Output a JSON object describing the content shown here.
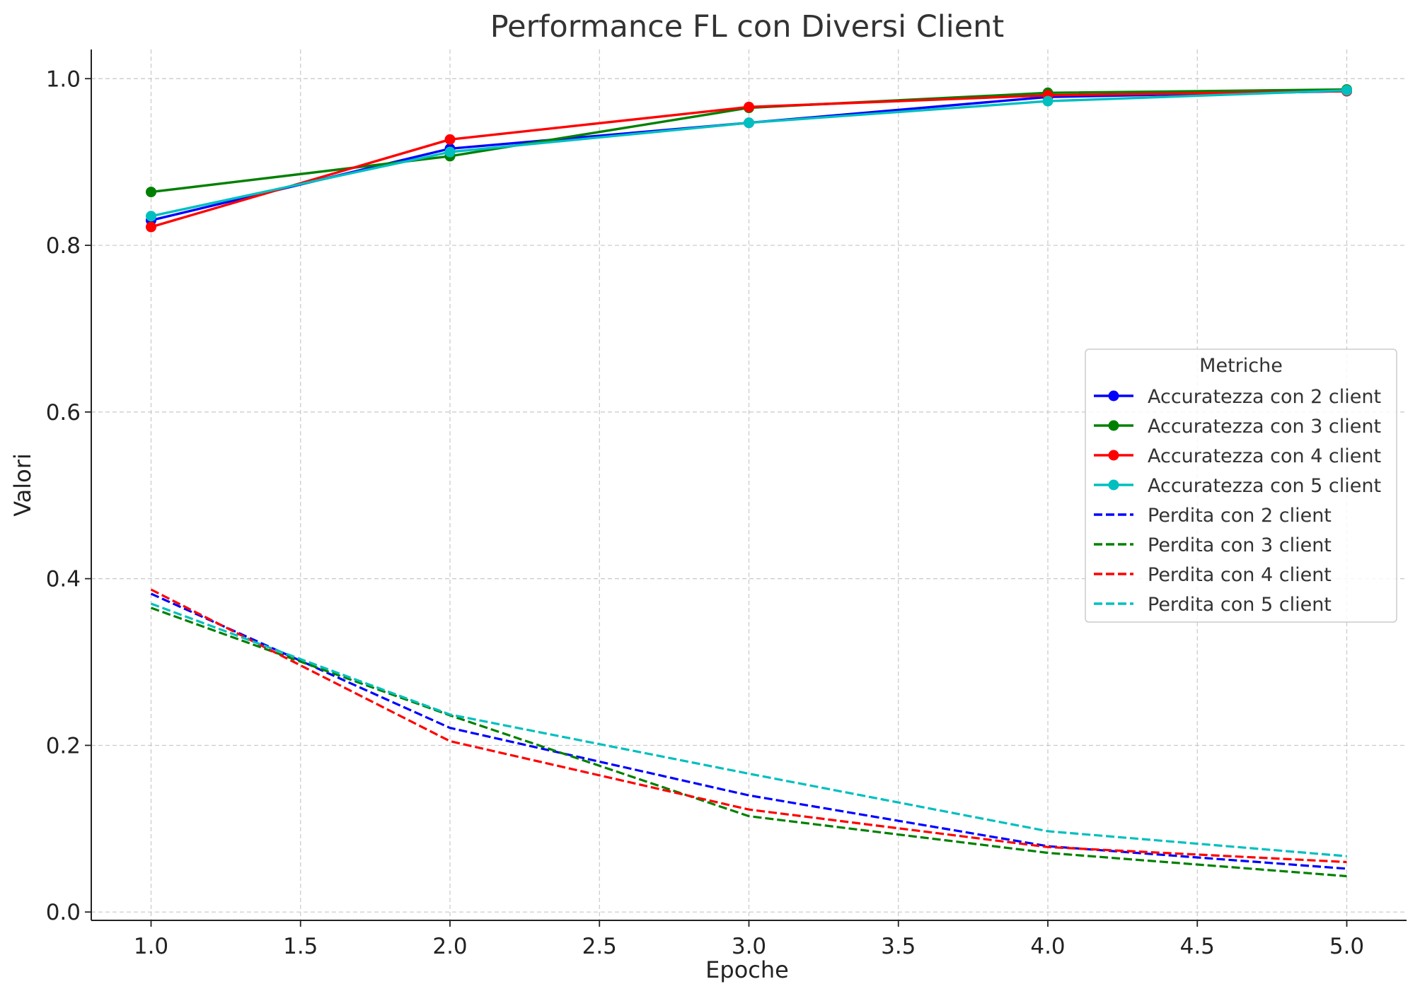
{
  "chart_data": {
    "type": "line",
    "title": "Performance FL con Diversi Client",
    "xlabel": "Epoche",
    "ylabel": "Valori",
    "xlim": [
      0.8,
      5.2
    ],
    "ylim": [
      -0.01,
      1.035
    ],
    "xticks": [
      "1.0",
      "1.5",
      "2.0",
      "2.5",
      "3.0",
      "3.5",
      "4.0",
      "4.5",
      "5.0"
    ],
    "yticks": [
      "0.0",
      "0.2",
      "0.4",
      "0.6",
      "0.8",
      "1.0"
    ],
    "grid": true,
    "legend": {
      "title": "Metriche",
      "placement": "center-right"
    },
    "x": [
      1,
      2,
      3,
      4,
      5
    ],
    "series": [
      {
        "name": "Accuratezza con 2 client",
        "color": "#0000ff",
        "style": "solid",
        "marker": true,
        "values": [
          0.83,
          0.916,
          0.947,
          0.978,
          0.985
        ]
      },
      {
        "name": "Accuratezza con 3 client",
        "color": "#008000",
        "style": "solid",
        "marker": true,
        "values": [
          0.864,
          0.907,
          0.965,
          0.983,
          0.987
        ]
      },
      {
        "name": "Accuratezza con 4 client",
        "color": "#ff0000",
        "style": "solid",
        "marker": true,
        "values": [
          0.822,
          0.927,
          0.966,
          0.98,
          0.985
        ]
      },
      {
        "name": "Accuratezza con 5 client",
        "color": "#00bfbf",
        "style": "solid",
        "marker": true,
        "values": [
          0.835,
          0.912,
          0.947,
          0.973,
          0.986
        ]
      },
      {
        "name": "Perdita con 2 client",
        "color": "#0000ff",
        "style": "dashed",
        "marker": false,
        "values": [
          0.382,
          0.221,
          0.14,
          0.079,
          0.052
        ]
      },
      {
        "name": "Perdita con 3 client",
        "color": "#008000",
        "style": "dashed",
        "marker": false,
        "values": [
          0.365,
          0.236,
          0.115,
          0.071,
          0.043
        ]
      },
      {
        "name": "Perdita con 4 client",
        "color": "#ff0000",
        "style": "dashed",
        "marker": false,
        "values": [
          0.387,
          0.205,
          0.123,
          0.078,
          0.06
        ]
      },
      {
        "name": "Perdita con 5 client",
        "color": "#00bfbf",
        "style": "dashed",
        "marker": false,
        "values": [
          0.37,
          0.237,
          0.166,
          0.097,
          0.067
        ]
      }
    ]
  }
}
